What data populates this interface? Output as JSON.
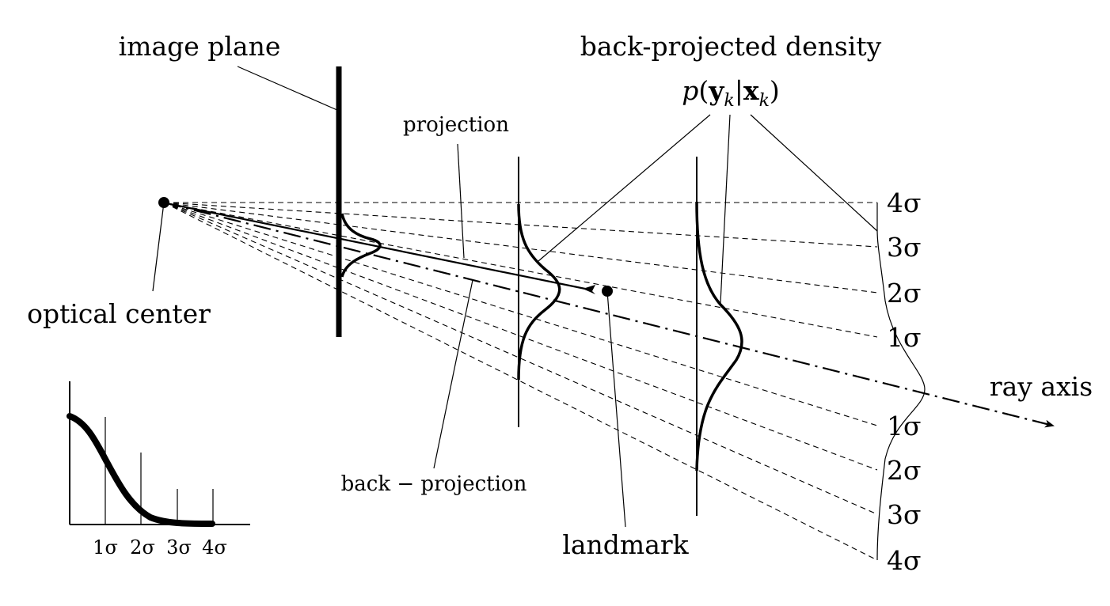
{
  "labels": {
    "image_plane": "image plane",
    "projection": "projection",
    "back_projection": "back − projection",
    "back_projected_density": "back-projected density",
    "density_formula": "p(y_k|x_k)",
    "optical_center": "optical center",
    "landmark": "landmark",
    "ray_axis": "ray axis"
  },
  "sigma_scale_right": [
    "4σ",
    "3σ",
    "2σ",
    "1σ",
    "1σ",
    "2σ",
    "3σ",
    "4σ"
  ],
  "inset_ticks": [
    "1σ",
    "2σ",
    "3σ",
    "4σ"
  ]
}
